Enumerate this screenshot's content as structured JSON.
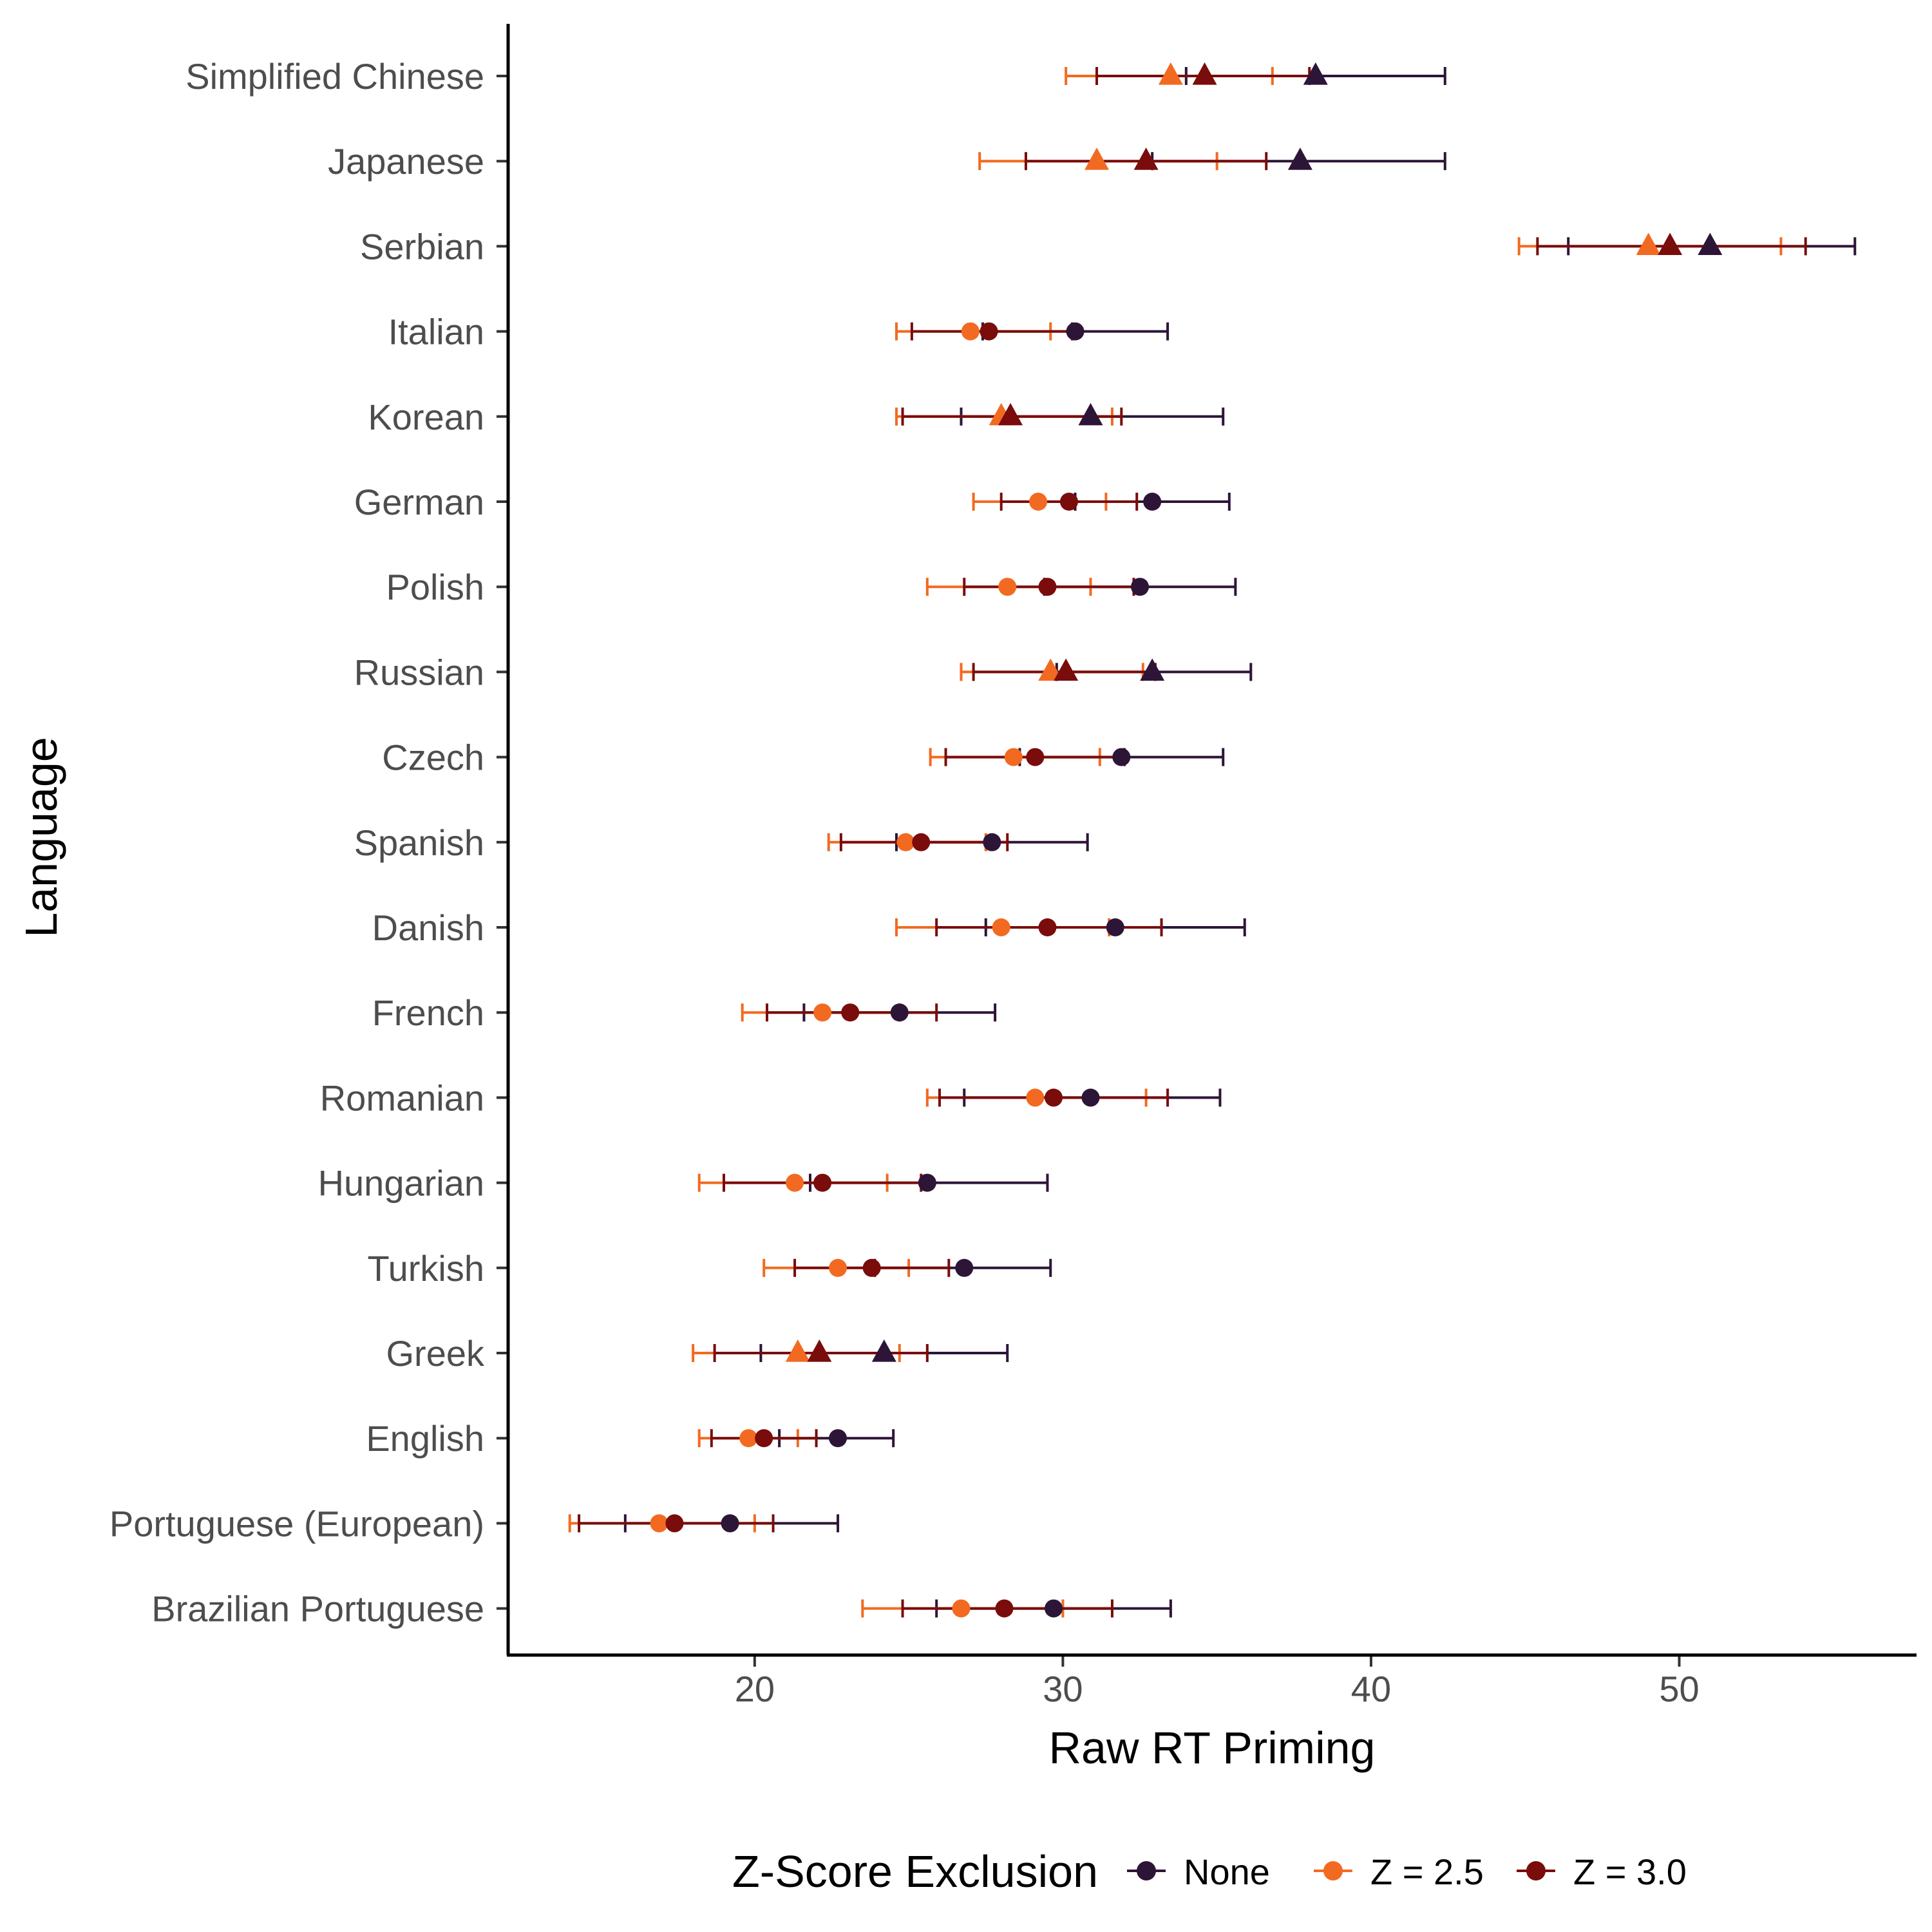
{
  "chart_data": {
    "type": "scatter",
    "subtype": "point-range (dot plot with error bars)",
    "xlabel": "Raw RT Priming",
    "ylabel": "Language",
    "xlim": [
      12,
      57.7
    ],
    "xticks": [
      20,
      30,
      40,
      50
    ],
    "grid": false,
    "legend": {
      "title": "Z-Score Exclusion",
      "position": "bottom",
      "entries": [
        "None",
        "Z = 2.5",
        "Z = 3.0"
      ]
    },
    "series_styles": [
      {
        "name": "None",
        "color": "#2d1538"
      },
      {
        "name": "Z = 2.5",
        "color": "#f26a21"
      },
      {
        "name": "Z = 3.0",
        "color": "#7a0c0c"
      }
    ],
    "marker_legend_note": "",
    "languages": [
      {
        "name": "Simplified Chinese",
        "marker": "triangle",
        "none": [
          38.2,
          34.0,
          42.4
        ],
        "z25": [
          33.5,
          30.1,
          36.8
        ],
        "z30": [
          34.6,
          31.1,
          38.0
        ]
      },
      {
        "name": "Japanese",
        "marker": "triangle",
        "none": [
          37.7,
          32.9,
          42.4
        ],
        "z25": [
          31.1,
          27.3,
          35.0
        ],
        "z30": [
          32.7,
          28.8,
          36.6
        ]
      },
      {
        "name": "Serbian",
        "marker": "triangle",
        "none": [
          51.0,
          46.4,
          55.7
        ],
        "z25": [
          49.0,
          44.8,
          53.3
        ],
        "z30": [
          49.7,
          45.4,
          54.1
        ]
      },
      {
        "name": "Italian",
        "marker": "circle",
        "none": [
          30.4,
          27.4,
          33.4
        ],
        "z25": [
          27.0,
          24.6,
          29.6
        ],
        "z30": [
          27.6,
          25.1,
          30.3
        ]
      },
      {
        "name": "Korean",
        "marker": "triangle",
        "none": [
          30.9,
          26.7,
          35.2
        ],
        "z25": [
          28.0,
          24.6,
          31.6
        ],
        "z30": [
          28.3,
          24.8,
          31.9
        ]
      },
      {
        "name": "German",
        "marker": "circle",
        "none": [
          32.9,
          30.4,
          35.4
        ],
        "z25": [
          29.2,
          27.1,
          31.4
        ],
        "z30": [
          30.2,
          28.0,
          32.4
        ]
      },
      {
        "name": "Polish",
        "marker": "circle",
        "none": [
          32.5,
          29.4,
          35.6
        ],
        "z25": [
          28.2,
          25.6,
          30.9
        ],
        "z30": [
          29.5,
          26.8,
          32.3
        ]
      },
      {
        "name": "Russian",
        "marker": "triangle",
        "none": [
          32.9,
          29.8,
          36.1
        ],
        "z25": [
          29.6,
          26.7,
          32.6
        ],
        "z30": [
          30.1,
          27.1,
          33.0
        ]
      },
      {
        "name": "Czech",
        "marker": "circle",
        "none": [
          31.9,
          28.6,
          35.2
        ],
        "z25": [
          28.4,
          25.7,
          31.2
        ],
        "z30": [
          29.1,
          26.2,
          32.0
        ]
      },
      {
        "name": "Spanish",
        "marker": "circle",
        "none": [
          27.7,
          24.6,
          30.8
        ],
        "z25": [
          24.9,
          22.4,
          27.5
        ],
        "z30": [
          25.4,
          22.8,
          28.2
        ]
      },
      {
        "name": "Danish",
        "marker": "circle",
        "none": [
          31.7,
          27.5,
          35.9
        ],
        "z25": [
          28.0,
          24.6,
          31.5
        ],
        "z30": [
          29.5,
          25.9,
          33.2
        ]
      },
      {
        "name": "French",
        "marker": "circle",
        "none": [
          24.7,
          21.6,
          27.8
        ],
        "z25": [
          22.2,
          19.6,
          24.7
        ],
        "z30": [
          23.1,
          20.4,
          25.9
        ]
      },
      {
        "name": "Romanian",
        "marker": "circle",
        "none": [
          30.9,
          26.8,
          35.1
        ],
        "z25": [
          29.1,
          25.6,
          32.7
        ],
        "z30": [
          29.7,
          26.0,
          33.4
        ]
      },
      {
        "name": "Hungarian",
        "marker": "circle",
        "none": [
          25.6,
          21.8,
          29.5
        ],
        "z25": [
          21.3,
          18.2,
          24.3
        ],
        "z30": [
          22.2,
          19.0,
          25.4
        ]
      },
      {
        "name": "Turkish",
        "marker": "circle",
        "none": [
          26.8,
          23.9,
          29.6
        ],
        "z25": [
          22.7,
          20.3,
          25.0
        ],
        "z30": [
          23.8,
          21.3,
          26.3
        ]
      },
      {
        "name": "Greek",
        "marker": "triangle",
        "none": [
          24.2,
          20.2,
          28.2
        ],
        "z25": [
          21.4,
          18.0,
          24.7
        ],
        "z30": [
          22.1,
          18.7,
          25.6
        ]
      },
      {
        "name": "English",
        "marker": "circle",
        "none": [
          22.7,
          20.8,
          24.5
        ],
        "z25": [
          19.8,
          18.2,
          21.4
        ],
        "z30": [
          20.3,
          18.6,
          22.0
        ]
      },
      {
        "name": "Portuguese (European)",
        "marker": "circle",
        "none": [
          19.2,
          15.8,
          22.7
        ],
        "z25": [
          16.9,
          14.0,
          20.0
        ],
        "z30": [
          17.4,
          14.3,
          20.6
        ]
      },
      {
        "name": "Brazilian Portuguese",
        "marker": "circle",
        "none": [
          29.7,
          25.9,
          33.5
        ],
        "z25": [
          26.7,
          23.5,
          30.0
        ],
        "z30": [
          28.1,
          24.8,
          31.6
        ]
      }
    ]
  }
}
